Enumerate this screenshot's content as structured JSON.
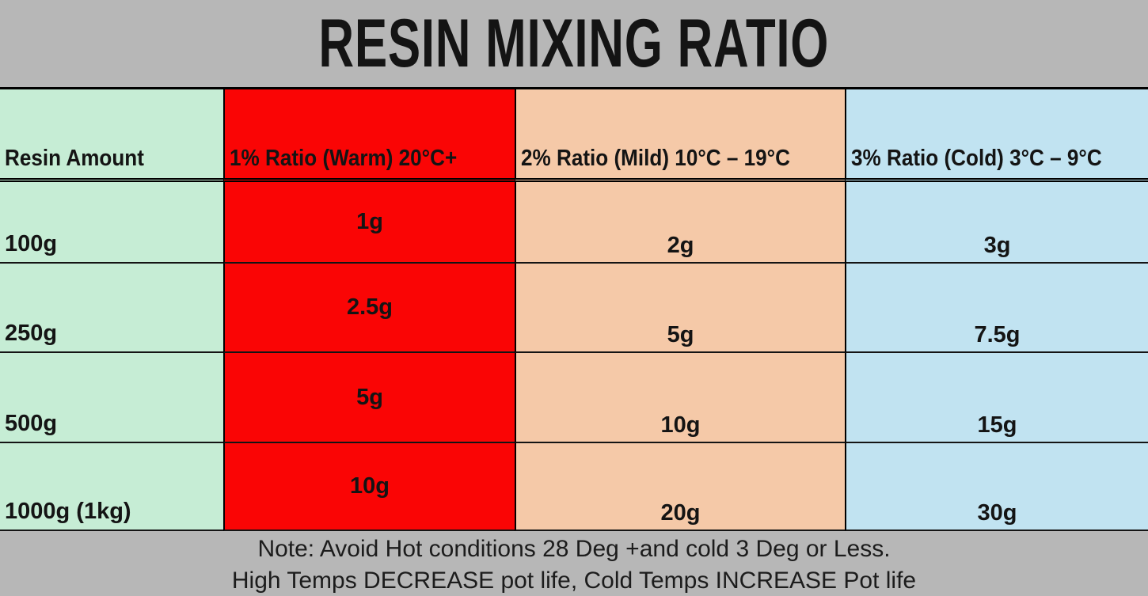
{
  "title": "RESIN MIXING RATIO",
  "table": {
    "columns": [
      {
        "header": "Resin Amount"
      },
      {
        "header": "1% Ratio (Warm) 20°C+"
      },
      {
        "header": "2% Ratio (Mild) 10°C – 19°C"
      },
      {
        "header": "3% Ratio (Cold) 3°C – 9°C"
      }
    ],
    "rows": [
      {
        "amount": "100g",
        "warm": "1g",
        "mild": "2g",
        "cold": "3g"
      },
      {
        "amount": "250g",
        "warm": "2.5g",
        "mild": "5g",
        "cold": "7.5g"
      },
      {
        "amount": "500g",
        "warm": "5g",
        "mild": "10g",
        "cold": "15g"
      },
      {
        "amount": "1000g (1kg)",
        "warm": "10g",
        "mild": "20g",
        "cold": "30g"
      }
    ]
  },
  "notes": {
    "line1": "Note: Avoid Hot conditions 28 Deg +and cold 3 Deg or Less.",
    "line2": "High Temps DECREASE pot life, Cold Temps INCREASE Pot life"
  },
  "colors": {
    "page_bg": "#b7b7b7",
    "green_cell": "#c6edd5",
    "red_cell": "#fa0505",
    "peach_cell": "#f5c9a8",
    "blue_cell": "#c1e3f1",
    "border": "#000000",
    "text": "#141414"
  },
  "chart_data": {
    "type": "table",
    "title": "RESIN MIXING RATIO",
    "categories": [
      "100g",
      "250g",
      "500g",
      "1000g (1kg)"
    ],
    "series": [
      {
        "name": "1% Ratio (Warm) 20°C+",
        "values": [
          1,
          2.5,
          5,
          10
        ],
        "unit": "g"
      },
      {
        "name": "2% Ratio (Mild) 10°C – 19°C",
        "values": [
          2,
          5,
          10,
          20
        ],
        "unit": "g"
      },
      {
        "name": "3% Ratio (Cold) 3°C – 9°C",
        "values": [
          3,
          7.5,
          15,
          30
        ],
        "unit": "g"
      }
    ]
  }
}
